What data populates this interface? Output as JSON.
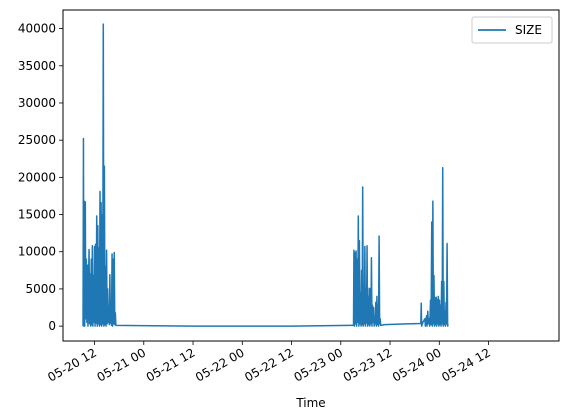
{
  "chart_data": {
    "type": "line",
    "title": "",
    "xlabel": "Time",
    "ylabel": "",
    "ylim": [
      -2000,
      42500
    ],
    "xlim": [
      "2024-05-20T04:19",
      "2024-05-25T05:10"
    ],
    "x_ticks": [
      {
        "t": "2024-05-20T12:00",
        "label": "05-20 12"
      },
      {
        "t": "2024-05-21T00:00",
        "label": "05-21 00"
      },
      {
        "t": "2024-05-21T12:00",
        "label": "05-21 12"
      },
      {
        "t": "2024-05-22T00:00",
        "label": "05-22 00"
      },
      {
        "t": "2024-05-22T12:00",
        "label": "05-22 12"
      },
      {
        "t": "2024-05-23T00:00",
        "label": "05-23 00"
      },
      {
        "t": "2024-05-23T12:00",
        "label": "05-23 12"
      },
      {
        "t": "2024-05-24T00:00",
        "label": "05-24 00"
      },
      {
        "t": "2024-05-24T12:00",
        "label": "05-24 12"
      }
    ],
    "y_ticks": [
      0,
      5000,
      10000,
      15000,
      20000,
      25000,
      30000,
      35000,
      40000
    ],
    "grid": false,
    "legend": {
      "position": "top-right"
    },
    "series": [
      {
        "name": "SIZE",
        "color": "#1f77b4",
        "points": [
          [
            "2024-05-20T09:12",
            0
          ],
          [
            "2024-05-20T09:18",
            25200
          ],
          [
            "2024-05-20T09:24",
            0
          ],
          [
            "2024-05-20T09:30",
            16800
          ],
          [
            "2024-05-20T09:36",
            0
          ],
          [
            "2024-05-20T09:45",
            16700
          ],
          [
            "2024-05-20T09:52",
            1000
          ],
          [
            "2024-05-20T10:00",
            9000
          ],
          [
            "2024-05-20T10:08",
            500
          ],
          [
            "2024-05-20T10:16",
            8200
          ],
          [
            "2024-05-20T10:24",
            0
          ],
          [
            "2024-05-20T10:32",
            6000
          ],
          [
            "2024-05-20T10:40",
            10300
          ],
          [
            "2024-05-20T10:48",
            300
          ],
          [
            "2024-05-20T10:56",
            7000
          ],
          [
            "2024-05-20T11:04",
            0
          ],
          [
            "2024-05-20T11:12",
            9000
          ],
          [
            "2024-05-20T11:20",
            200
          ],
          [
            "2024-05-20T11:28",
            10800
          ],
          [
            "2024-05-20T11:36",
            0
          ],
          [
            "2024-05-20T11:44",
            6800
          ],
          [
            "2024-05-20T11:52",
            500
          ],
          [
            "2024-05-20T12:00",
            10700
          ],
          [
            "2024-05-20T12:08",
            0
          ],
          [
            "2024-05-20T12:16",
            11000
          ],
          [
            "2024-05-20T12:24",
            400
          ],
          [
            "2024-05-20T12:32",
            14800
          ],
          [
            "2024-05-20T12:40",
            0
          ],
          [
            "2024-05-20T12:48",
            13500
          ],
          [
            "2024-05-20T12:56",
            300
          ],
          [
            "2024-05-20T13:04",
            10500
          ],
          [
            "2024-05-20T13:12",
            0
          ],
          [
            "2024-05-20T13:20",
            18100
          ],
          [
            "2024-05-20T13:28",
            200
          ],
          [
            "2024-05-20T13:36",
            16600
          ],
          [
            "2024-05-20T13:44",
            0
          ],
          [
            "2024-05-20T13:52",
            15000
          ],
          [
            "2024-05-20T14:00",
            300
          ],
          [
            "2024-05-20T14:08",
            40600
          ],
          [
            "2024-05-20T14:16",
            0
          ],
          [
            "2024-05-20T14:24",
            21500
          ],
          [
            "2024-05-20T14:32",
            200
          ],
          [
            "2024-05-20T14:40",
            8000
          ],
          [
            "2024-05-20T14:48",
            0
          ],
          [
            "2024-05-20T14:56",
            10200
          ],
          [
            "2024-05-20T15:04",
            300
          ],
          [
            "2024-05-20T15:12",
            5000
          ],
          [
            "2024-05-20T15:20",
            500
          ],
          [
            "2024-05-20T15:28",
            2700
          ],
          [
            "2024-05-20T15:36",
            200
          ],
          [
            "2024-05-20T15:44",
            6900
          ],
          [
            "2024-05-20T15:52",
            400
          ],
          [
            "2024-05-20T16:00",
            2800
          ],
          [
            "2024-05-20T16:08",
            100
          ],
          [
            "2024-05-20T16:16",
            9700
          ],
          [
            "2024-05-20T16:24",
            0
          ],
          [
            "2024-05-20T16:32",
            9000
          ],
          [
            "2024-05-20T16:40",
            300
          ],
          [
            "2024-05-20T16:48",
            9900
          ],
          [
            "2024-05-20T16:56",
            200
          ],
          [
            "2024-05-20T17:04",
            1800
          ],
          [
            "2024-05-20T17:12",
            100
          ],
          [
            "2024-05-21T12:00",
            0
          ],
          [
            "2024-05-22T12:00",
            0
          ],
          [
            "2024-05-23T02:00",
            100
          ],
          [
            "2024-05-23T03:06",
            100
          ],
          [
            "2024-05-23T03:12",
            10200
          ],
          [
            "2024-05-23T03:20",
            0
          ],
          [
            "2024-05-23T03:28",
            9900
          ],
          [
            "2024-05-23T03:36",
            300
          ],
          [
            "2024-05-23T03:44",
            10100
          ],
          [
            "2024-05-23T03:52",
            0
          ],
          [
            "2024-05-23T04:00",
            9000
          ],
          [
            "2024-05-23T04:08",
            500
          ],
          [
            "2024-05-23T04:16",
            14800
          ],
          [
            "2024-05-23T04:24",
            0
          ],
          [
            "2024-05-23T04:32",
            11500
          ],
          [
            "2024-05-23T04:40",
            300
          ],
          [
            "2024-05-23T04:48",
            4500
          ],
          [
            "2024-05-23T04:56",
            0
          ],
          [
            "2024-05-23T05:04",
            7500
          ],
          [
            "2024-05-23T05:12",
            200
          ],
          [
            "2024-05-23T05:20",
            18700
          ],
          [
            "2024-05-23T05:28",
            0
          ],
          [
            "2024-05-23T05:36",
            4800
          ],
          [
            "2024-05-23T05:44",
            300
          ],
          [
            "2024-05-23T05:52",
            10700
          ],
          [
            "2024-05-23T06:00",
            0
          ],
          [
            "2024-05-23T06:08",
            5000
          ],
          [
            "2024-05-23T06:16",
            400
          ],
          [
            "2024-05-23T06:24",
            10800
          ],
          [
            "2024-05-23T06:32",
            0
          ],
          [
            "2024-05-23T06:40",
            4000
          ],
          [
            "2024-05-23T06:48",
            200
          ],
          [
            "2024-05-23T06:56",
            5100
          ],
          [
            "2024-05-23T07:04",
            0
          ],
          [
            "2024-05-23T07:12",
            5000
          ],
          [
            "2024-05-23T07:20",
            300
          ],
          [
            "2024-05-23T07:28",
            9200
          ],
          [
            "2024-05-23T07:36",
            0
          ],
          [
            "2024-05-23T07:44",
            2800
          ],
          [
            "2024-05-23T07:52",
            500
          ],
          [
            "2024-05-23T08:00",
            2500
          ],
          [
            "2024-05-23T08:08",
            0
          ],
          [
            "2024-05-23T08:16",
            1200
          ],
          [
            "2024-05-23T08:24",
            300
          ],
          [
            "2024-05-23T08:32",
            3200
          ],
          [
            "2024-05-23T08:40",
            0
          ],
          [
            "2024-05-23T08:48",
            4000
          ],
          [
            "2024-05-23T08:56",
            200
          ],
          [
            "2024-05-23T09:04",
            2800
          ],
          [
            "2024-05-23T09:12",
            0
          ],
          [
            "2024-05-23T09:20",
            12100
          ],
          [
            "2024-05-23T09:28",
            300
          ],
          [
            "2024-05-23T09:36",
            1000
          ],
          [
            "2024-05-23T09:44",
            100
          ],
          [
            "2024-05-23T10:40",
            200
          ],
          [
            "2024-05-23T16:00",
            300
          ],
          [
            "2024-05-23T19:30",
            350
          ],
          [
            "2024-05-23T19:36",
            3100
          ],
          [
            "2024-05-23T19:42",
            0
          ],
          [
            "2024-05-23T20:00",
            500
          ],
          [
            "2024-05-23T20:30",
            1000
          ],
          [
            "2024-05-23T20:36",
            0
          ],
          [
            "2024-05-23T20:54",
            1400
          ],
          [
            "2024-05-23T21:00",
            0
          ],
          [
            "2024-05-23T21:12",
            2000
          ],
          [
            "2024-05-23T21:20",
            300
          ],
          [
            "2024-05-23T21:30",
            1000
          ],
          [
            "2024-05-23T21:40",
            0
          ],
          [
            "2024-05-23T21:52",
            3500
          ],
          [
            "2024-05-23T22:00",
            200
          ],
          [
            "2024-05-23T22:10",
            14000
          ],
          [
            "2024-05-23T22:18",
            0
          ],
          [
            "2024-05-23T22:26",
            16800
          ],
          [
            "2024-05-23T22:34",
            300
          ],
          [
            "2024-05-23T22:42",
            6800
          ],
          [
            "2024-05-23T22:50",
            0
          ],
          [
            "2024-05-23T22:58",
            3800
          ],
          [
            "2024-05-23T23:06",
            200
          ],
          [
            "2024-05-23T23:14",
            3900
          ],
          [
            "2024-05-23T23:22",
            0
          ],
          [
            "2024-05-23T23:30",
            3600
          ],
          [
            "2024-05-23T23:38",
            300
          ],
          [
            "2024-05-23T23:46",
            4000
          ],
          [
            "2024-05-23T23:54",
            0
          ],
          [
            "2024-05-24T00:02",
            3500
          ],
          [
            "2024-05-24T00:10",
            200
          ],
          [
            "2024-05-24T00:18",
            2800
          ],
          [
            "2024-05-24T00:26",
            0
          ],
          [
            "2024-05-24T00:34",
            6000
          ],
          [
            "2024-05-24T00:42",
            300
          ],
          [
            "2024-05-24T00:50",
            21300
          ],
          [
            "2024-05-24T00:58",
            0
          ],
          [
            "2024-05-24T01:06",
            6000
          ],
          [
            "2024-05-24T01:14",
            200
          ],
          [
            "2024-05-24T01:22",
            2000
          ],
          [
            "2024-05-24T01:30",
            0
          ],
          [
            "2024-05-24T01:38",
            3200
          ],
          [
            "2024-05-24T01:46",
            300
          ],
          [
            "2024-05-24T01:54",
            11100
          ],
          [
            "2024-05-24T02:02",
            0
          ],
          [
            "2024-05-24T02:10",
            200
          ]
        ]
      }
    ]
  }
}
